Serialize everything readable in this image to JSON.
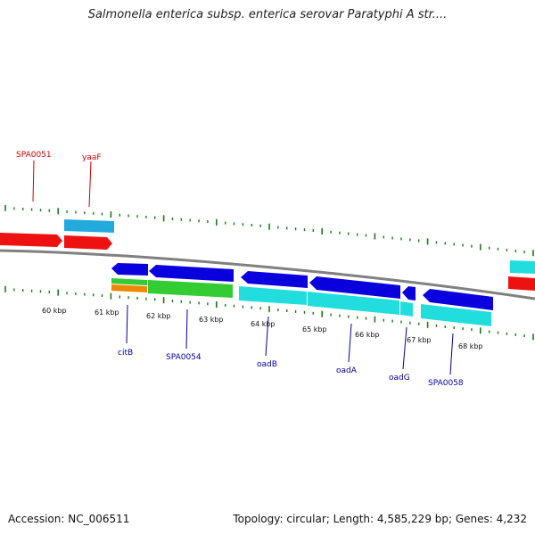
{
  "title": "Salmonella enterica subsp. enterica serovar Paratyphi A str....",
  "footer": {
    "accession": "Accession: NC_006511",
    "topology": "Topology: circular; Length: 4,585,229 bp; Genes: 4,232"
  },
  "colors": {
    "backbone": "#808080",
    "tick": "#1a7a1a",
    "label_forward": "#cc0000",
    "label_reverse": "#000099"
  },
  "kbp_labels": [
    "60 kbp",
    "61 kbp",
    "62 kbp",
    "63 kbp",
    "64 kbp",
    "65 kbp",
    "66 kbp",
    "67 kbp",
    "68 kbp"
  ],
  "gene_labels_top": [
    {
      "name": "SPA0051",
      "color": "#cc0000"
    },
    {
      "name": "yaaF",
      "color": "#cc0000"
    }
  ],
  "gene_labels_bottom": [
    {
      "name": "citB",
      "color": "#000099"
    },
    {
      "name": "SPA0054",
      "color": "#000099"
    },
    {
      "name": "oadB",
      "color": "#000099"
    },
    {
      "name": "oadA",
      "color": "#000099"
    },
    {
      "name": "oadG",
      "color": "#000099"
    },
    {
      "name": "SPA0058",
      "color": "#000099"
    }
  ]
}
